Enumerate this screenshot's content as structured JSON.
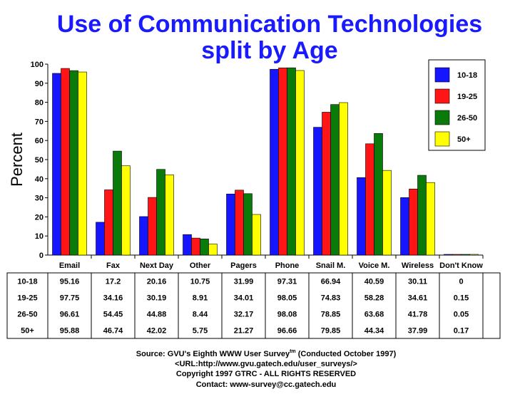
{
  "chart_data": {
    "type": "bar",
    "title_line1": "Use of Communication Technologies",
    "title_line2": "split by Age",
    "ylabel": "Percent",
    "ylim": [
      0,
      100
    ],
    "yticks": [
      0,
      10,
      20,
      30,
      40,
      50,
      60,
      70,
      80,
      90,
      100
    ],
    "grid": false,
    "legend_position": "top-right",
    "categories": [
      "Email",
      "Fax",
      "Next Day",
      "Other",
      "Pagers",
      "Phone",
      "Snail M.",
      "Voice M.",
      "Wireless",
      "Don't Know"
    ],
    "series": [
      {
        "name": "10-18",
        "color": "#1515ff",
        "values": [
          95.16,
          17.2,
          20.16,
          10.75,
          31.99,
          97.31,
          66.94,
          40.59,
          30.11,
          0
        ],
        "labels": [
          "95.16",
          "17.2",
          "20.16",
          "10.75",
          "31.99",
          "97.31",
          "66.94",
          "40.59",
          "30.11",
          "0"
        ]
      },
      {
        "name": "19-25",
        "color": "#ff1515",
        "values": [
          97.75,
          34.16,
          30.19,
          8.91,
          34.01,
          98.05,
          74.83,
          58.28,
          34.61,
          0.15
        ],
        "labels": [
          "97.75",
          "34.16",
          "30.19",
          "8.91",
          "34.01",
          "98.05",
          "74.83",
          "58.28",
          "34.61",
          "0.15"
        ]
      },
      {
        "name": "26-50",
        "color": "#0a7a0a",
        "values": [
          96.61,
          54.45,
          44.88,
          8.44,
          32.17,
          98.08,
          78.85,
          63.68,
          41.78,
          0.05
        ],
        "labels": [
          "96.61",
          "54.45",
          "44.88",
          "8.44",
          "32.17",
          "98.08",
          "78.85",
          "63.68",
          "41.78",
          "0.05"
        ]
      },
      {
        "name": "50+",
        "color": "#ffff00",
        "values": [
          95.88,
          46.74,
          42.02,
          5.75,
          21.27,
          96.66,
          79.85,
          44.34,
          37.99,
          0.17
        ],
        "labels": [
          "95.88",
          "46.74",
          "42.02",
          "5.75",
          "21.27",
          "96.66",
          "79.85",
          "44.34",
          "37.99",
          "0.17"
        ]
      }
    ]
  },
  "footer": {
    "source_prefix": "Source: GVU's Eighth WWW User Survey",
    "source_sup": "tm",
    "source_suffix": " (Conducted October 1997)",
    "url": "<URL:http://www.gvu.gatech.edu/user_surveys/>",
    "copyright": "Copyright 1997 GTRC - ALL RIGHTS RESERVED",
    "contact": "Contact: www-survey@cc.gatech.edu"
  }
}
